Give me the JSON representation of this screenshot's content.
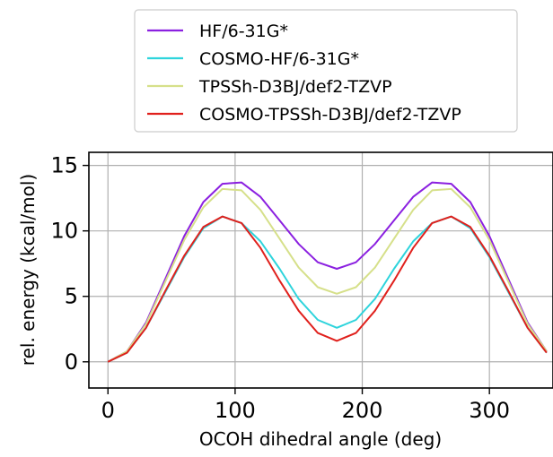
{
  "chart_data": {
    "type": "line",
    "title": "",
    "xlabel": "OCOH dihedral angle (deg)",
    "ylabel": "rel. energy (kcal/mol)",
    "xlim": [
      -15,
      350
    ],
    "ylim": [
      -2,
      16
    ],
    "xticks": [
      0,
      100,
      200,
      300
    ],
    "yticks": [
      0,
      5,
      10,
      15
    ],
    "grid": true,
    "legend_position": "top",
    "x": [
      0,
      15,
      30,
      45,
      60,
      75,
      90,
      105,
      120,
      135,
      150,
      165,
      180,
      195,
      210,
      225,
      240,
      255,
      270,
      285,
      300,
      315,
      330,
      345
    ],
    "series": [
      {
        "name": "HF/6-31G*",
        "color": "#8b20e0",
        "values": [
          0,
          0.8,
          3.0,
          6.3,
          9.6,
          12.2,
          13.6,
          13.7,
          12.6,
          10.8,
          9.0,
          7.6,
          7.1,
          7.6,
          9.0,
          10.8,
          12.6,
          13.7,
          13.6,
          12.2,
          9.6,
          6.3,
          3.0,
          0.8
        ]
      },
      {
        "name": "COSMO-HF/6-31G*",
        "color": "#2ed4dc",
        "values": [
          0,
          0.7,
          2.6,
          5.3,
          8.0,
          10.2,
          11.1,
          10.6,
          9.2,
          7.1,
          4.8,
          3.2,
          2.6,
          3.2,
          4.8,
          7.1,
          9.2,
          10.6,
          11.1,
          10.2,
          8.0,
          5.3,
          2.6,
          0.7
        ]
      },
      {
        "name": "TPSSh-D3BJ/def2-TZVP",
        "color": "#d6e08a",
        "values": [
          0,
          0.8,
          2.9,
          6.1,
          9.3,
          11.8,
          13.2,
          13.1,
          11.6,
          9.4,
          7.2,
          5.7,
          5.2,
          5.7,
          7.2,
          9.4,
          11.6,
          13.1,
          13.2,
          11.8,
          9.3,
          6.1,
          2.9,
          0.8
        ]
      },
      {
        "name": "COSMO-TPSSh-D3BJ/def2-TZVP",
        "color": "#e0201c",
        "values": [
          0,
          0.7,
          2.6,
          5.4,
          8.1,
          10.3,
          11.1,
          10.6,
          8.7,
          6.2,
          3.9,
          2.2,
          1.6,
          2.2,
          3.9,
          6.2,
          8.7,
          10.6,
          11.1,
          10.3,
          8.1,
          5.4,
          2.6,
          0.7
        ]
      }
    ]
  }
}
